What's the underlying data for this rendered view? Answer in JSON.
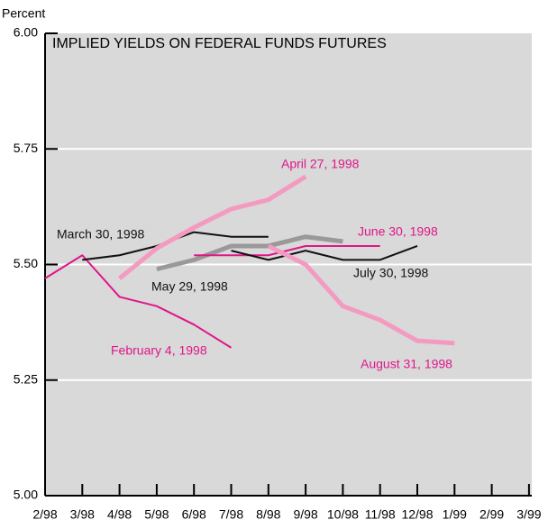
{
  "chart_data": {
    "type": "line",
    "title": "IMPLIED YIELDS ON FEDERAL FUNDS FUTURES",
    "y_label": "Percent",
    "categories": [
      "2/98",
      "3/98",
      "4/98",
      "5/98",
      "6/98",
      "7/98",
      "8/98",
      "9/98",
      "10/98",
      "11/98",
      "12/98",
      "1/99",
      "2/99",
      "3/99"
    ],
    "ylim": [
      5.0,
      6.0
    ],
    "yticks": [
      {
        "value": 5.0,
        "label": "5.00"
      },
      {
        "value": 5.25,
        "label": "5.25"
      },
      {
        "value": 5.5,
        "label": "5.50"
      },
      {
        "value": 5.75,
        "label": "5.75"
      },
      {
        "value": 6.0,
        "label": "6.00"
      }
    ],
    "grid": true,
    "series": [
      {
        "name": "February 4, 1998",
        "color": "#e0168a",
        "width": 2,
        "values": [
          5.47,
          5.52,
          5.43,
          5.41,
          5.37,
          5.32,
          null,
          null,
          null,
          null,
          null,
          null,
          null,
          null
        ]
      },
      {
        "name": "March 30, 1998",
        "color": "#111111",
        "width": 2,
        "values": [
          null,
          5.51,
          5.52,
          5.54,
          5.57,
          5.56,
          5.56,
          null,
          null,
          null,
          null,
          null,
          null,
          null
        ]
      },
      {
        "name": "April 27, 1998",
        "color": "#f49ac1",
        "width": 5,
        "values": [
          null,
          null,
          5.47,
          5.535,
          5.58,
          5.62,
          5.64,
          5.69,
          null,
          null,
          null,
          null,
          null,
          null
        ]
      },
      {
        "name": "May 29, 1998",
        "color": "#999999",
        "width": 5,
        "values": [
          null,
          null,
          null,
          5.49,
          5.51,
          5.54,
          5.54,
          5.56,
          5.55,
          null,
          null,
          null,
          null,
          null
        ]
      },
      {
        "name": "June 30, 1998",
        "color": "#e0168a",
        "width": 2,
        "values": [
          null,
          null,
          null,
          null,
          5.52,
          5.52,
          5.52,
          5.54,
          5.54,
          5.54,
          null,
          null,
          null,
          null
        ]
      },
      {
        "name": "July 30, 1998",
        "color": "#111111",
        "width": 2,
        "values": [
          null,
          null,
          null,
          null,
          null,
          5.53,
          5.51,
          5.53,
          5.51,
          5.51,
          5.54,
          null,
          null,
          null
        ]
      },
      {
        "name": "August 31, 1998",
        "color": "#f49ac1",
        "width": 5,
        "values": [
          null,
          null,
          null,
          null,
          null,
          null,
          5.54,
          5.5,
          5.41,
          5.38,
          5.335,
          5.33,
          null,
          null
        ]
      }
    ]
  }
}
